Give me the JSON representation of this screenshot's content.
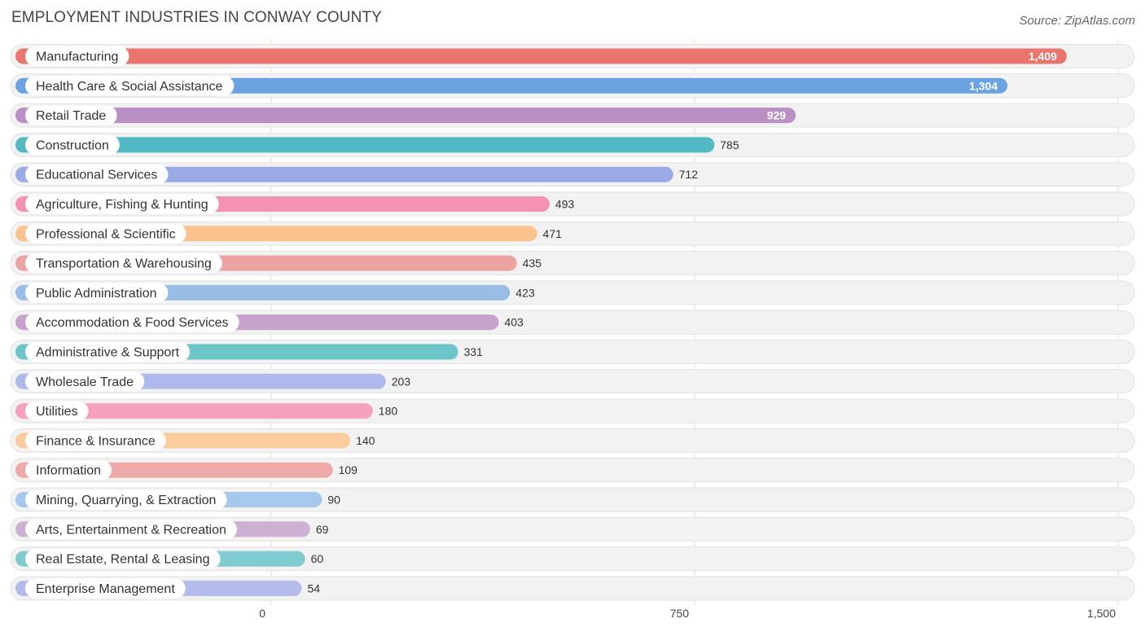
{
  "chart_data": {
    "type": "bar",
    "orientation": "horizontal",
    "title": "EMPLOYMENT INDUSTRIES IN CONWAY COUNTY",
    "source": "Source: ZipAtlas.com",
    "xlim": [
      0,
      1500
    ],
    "ticks": [
      0,
      750,
      1500
    ],
    "tick_labels": [
      "0",
      "750",
      "1,500"
    ],
    "categories": [
      "Manufacturing",
      "Health Care & Social Assistance",
      "Retail Trade",
      "Construction",
      "Educational Services",
      "Agriculture, Fishing & Hunting",
      "Professional & Scientific",
      "Transportation & Warehousing",
      "Public Administration",
      "Accommodation & Food Services",
      "Administrative & Support",
      "Wholesale Trade",
      "Utilities",
      "Finance & Insurance",
      "Information",
      "Mining, Quarrying, & Extraction",
      "Arts, Entertainment & Recreation",
      "Real Estate, Rental & Leasing",
      "Enterprise Management"
    ],
    "values": [
      1409,
      1304,
      929,
      785,
      712,
      493,
      471,
      435,
      423,
      403,
      331,
      203,
      180,
      140,
      109,
      90,
      69,
      60,
      54
    ],
    "value_labels": [
      "1,409",
      "1,304",
      "929",
      "785",
      "712",
      "493",
      "471",
      "435",
      "423",
      "403",
      "331",
      "203",
      "180",
      "140",
      "109",
      "90",
      "69",
      "60",
      "54"
    ],
    "colors": [
      "#e8766f",
      "#6ba2e0",
      "#b98fc4",
      "#52b8c3",
      "#9aaae6",
      "#f591b2",
      "#fbc28d",
      "#eda3a1",
      "#98bde6",
      "#c6a2cc",
      "#6cc5c9",
      "#b0b9ec",
      "#f5a0bc",
      "#fbcc9d",
      "#eeaaa8",
      "#a6c8ed",
      "#cdb1d5",
      "#7fcbcf",
      "#b4bcee"
    ]
  }
}
